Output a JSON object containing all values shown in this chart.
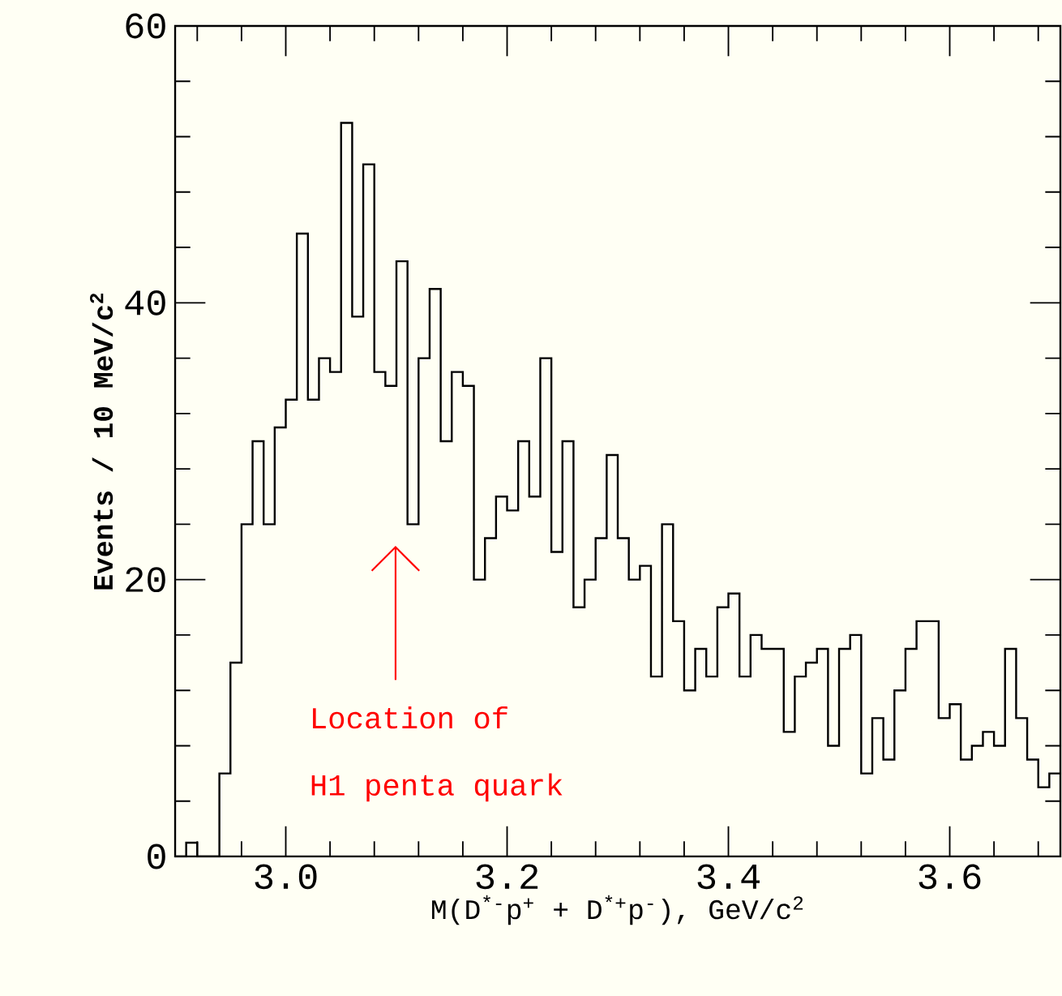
{
  "chart_data": {
    "type": "histogram",
    "xlabel": "M(D$^{*-}$p$^{+}$ + D$^{*+}$p$^{-}$), GeV/c$^{2}$",
    "ylabel": "Events / 10 MeV/c$^{2}$",
    "bins": [
      2.9,
      2.91,
      2.92,
      2.93,
      2.94,
      2.95,
      2.96,
      2.97,
      2.98,
      2.99,
      3.0,
      3.01,
      3.02,
      3.03,
      3.04,
      3.05,
      3.06,
      3.07,
      3.08,
      3.09,
      3.1,
      3.11,
      3.12,
      3.13,
      3.14,
      3.15,
      3.16,
      3.17,
      3.18,
      3.19,
      3.2,
      3.21,
      3.22,
      3.23,
      3.24,
      3.25,
      3.26,
      3.27,
      3.28,
      3.29,
      3.3,
      3.31,
      3.32,
      3.33,
      3.34,
      3.35,
      3.36,
      3.37,
      3.38,
      3.39,
      3.4,
      3.41,
      3.42,
      3.43,
      3.44,
      3.45,
      3.46,
      3.47,
      3.48,
      3.49,
      3.5,
      3.51,
      3.52,
      3.53,
      3.54,
      3.55,
      3.56,
      3.57,
      3.58,
      3.59,
      3.6,
      3.61,
      3.62,
      3.63,
      3.64,
      3.65,
      3.66,
      3.67,
      3.68,
      3.69,
      3.7
    ],
    "values": [
      0,
      1,
      0,
      0,
      6,
      14,
      24,
      30,
      24,
      31,
      33,
      45,
      33,
      36,
      35,
      53,
      39,
      50,
      35,
      34,
      43,
      24,
      36,
      41,
      30,
      35,
      34,
      20,
      23,
      26,
      25,
      30,
      26,
      36,
      22,
      30,
      18,
      20,
      23,
      29,
      23,
      20,
      21,
      13,
      24,
      17,
      12,
      15,
      13,
      18,
      19,
      13,
      16,
      15,
      15,
      9,
      13,
      14,
      15,
      8,
      15,
      16,
      6,
      10,
      7,
      12,
      15,
      17,
      17,
      10,
      11,
      7,
      8,
      9,
      8,
      15,
      10,
      7,
      5,
      6
    ],
    "color": "#000000",
    "xlim": [
      2.9,
      3.7
    ],
    "ylim": [
      0,
      60
    ],
    "xticks": [
      {
        "value": 3.0,
        "label": "3.0"
      },
      {
        "value": 3.2,
        "label": "3.2"
      },
      {
        "value": 3.4,
        "label": "3.4"
      },
      {
        "value": 3.6,
        "label": "3.6"
      },
      {
        "value": 2.92,
        "label": null
      },
      {
        "value": 2.96,
        "label": null
      },
      {
        "value": 3.04,
        "label": null
      },
      {
        "value": 3.08,
        "label": null
      },
      {
        "value": 3.12,
        "label": null
      },
      {
        "value": 3.16,
        "label": null
      },
      {
        "value": 3.24,
        "label": null
      },
      {
        "value": 3.28,
        "label": null
      },
      {
        "value": 3.32,
        "label": null
      },
      {
        "value": 3.36,
        "label": null
      },
      {
        "value": 3.44,
        "label": null
      },
      {
        "value": 3.48,
        "label": null
      },
      {
        "value": 3.52,
        "label": null
      },
      {
        "value": 3.56,
        "label": null
      },
      {
        "value": 3.64,
        "label": null
      },
      {
        "value": 3.68,
        "label": null
      }
    ],
    "yticks": [
      0,
      20,
      40,
      60,
      {
        "value": 4,
        "label": null
      },
      {
        "value": 8,
        "label": null
      },
      {
        "value": 12,
        "label": null
      },
      {
        "value": 16,
        "label": null
      },
      {
        "value": 24,
        "label": null
      },
      {
        "value": 28,
        "label": null
      },
      {
        "value": 32,
        "label": null
      },
      {
        "value": 36,
        "label": null
      },
      {
        "value": 44,
        "label": null
      },
      {
        "value": 48,
        "label": null
      },
      {
        "value": 52,
        "label": null
      },
      {
        "value": 56,
        "label": null
      }
    ],
    "annotations": [
      "Location of",
      "H1 penta quark"
    ],
    "grid": false
  }
}
